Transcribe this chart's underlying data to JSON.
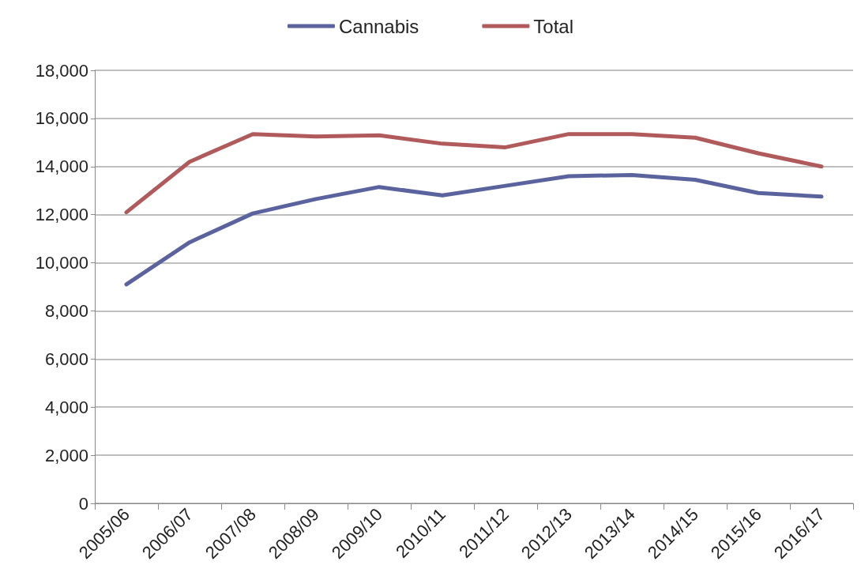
{
  "chart_data": {
    "type": "line",
    "categories": [
      "2005/06",
      "2006/07",
      "2007/08",
      "2008/09",
      "2009/10",
      "2010/11",
      "2011/12",
      "2012/13",
      "2013/14",
      "2014/15",
      "2015/16",
      "2016/17"
    ],
    "series": [
      {
        "name": "Cannabis",
        "color": "#5b639e",
        "values": [
          9100,
          10850,
          12050,
          12650,
          13150,
          12800,
          13200,
          13600,
          13650,
          13450,
          12900,
          12750
        ]
      },
      {
        "name": "Total",
        "color": "#b05a5c",
        "values": [
          12100,
          14200,
          15350,
          15250,
          15300,
          14950,
          14800,
          15350,
          15350,
          15200,
          14550,
          14000
        ]
      }
    ],
    "ylim": [
      0,
      18000
    ],
    "yticks": [
      0,
      {
        "value": 2000,
        "label": "2,000"
      },
      {
        "value": 4000,
        "label": "4,000"
      },
      {
        "value": 6000,
        "label": "6,000"
      },
      {
        "value": 8000,
        "label": "8,000"
      },
      {
        "value": 10000,
        "label": "10,000"
      },
      {
        "value": 12000,
        "label": "12,000"
      },
      {
        "value": 14000,
        "label": "14,000"
      },
      {
        "value": 16000,
        "label": "16,000"
      },
      {
        "value": 18000,
        "label": "18,000"
      }
    ],
    "grid": "y",
    "legend": "top",
    "marker": "none",
    "line_style": "solid"
  }
}
